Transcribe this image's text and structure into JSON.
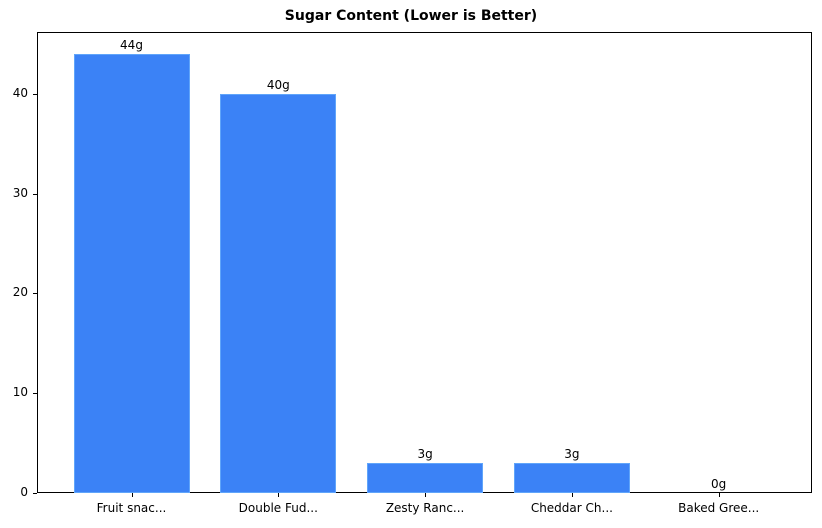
{
  "chart_data": {
    "type": "bar",
    "title": "Sugar Content (Lower is Better)",
    "xlabel": "",
    "ylabel": "",
    "categories": [
      "Fruit snac...",
      "Double Fud...",
      "Zesty Ranc...",
      "Cheddar Ch...",
      "Baked Gree..."
    ],
    "values": [
      44,
      40,
      3,
      3,
      0
    ],
    "value_labels": [
      "44g",
      "40g",
      "3g",
      "3g",
      "0g"
    ],
    "ylim": [
      0,
      46.2
    ],
    "yticks": [
      0,
      10,
      20,
      30,
      40
    ],
    "grid": false,
    "legend": null,
    "bar_color": "#3b82f6"
  }
}
